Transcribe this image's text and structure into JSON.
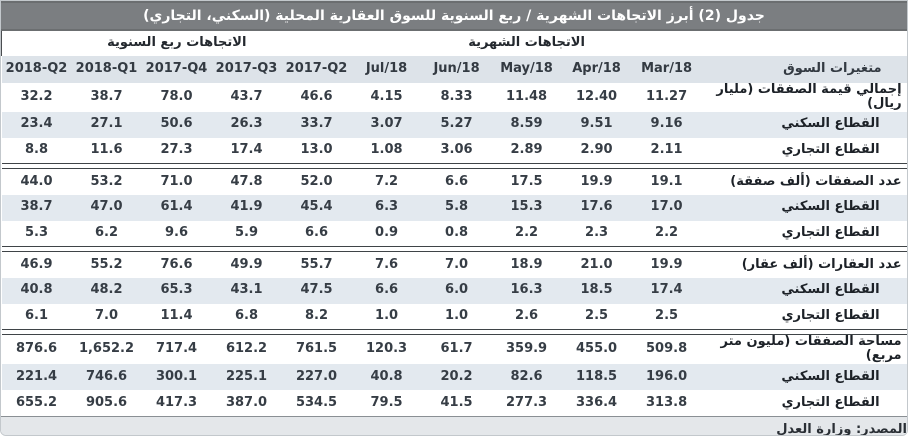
{
  "title": "جدول (2) أبرز الاتجاهات الشهرية / ربع السنوية للسوق العقارية المحلية (السكني، التجاري)",
  "groups": {
    "quarterly": "الاتجاهات ربع السنوية",
    "monthly": "الاتجاهات الشهرية"
  },
  "columns": [
    "2018-Q2",
    "2018-Q1",
    "2017-Q4",
    "2017-Q3",
    "2017-Q2",
    "Jul/18",
    "Jun/18",
    "May/18",
    "Apr/18",
    "Mar/18"
  ],
  "label_header": "متغيرات السوق",
  "sections": [
    {
      "rows": [
        {
          "label": "إجمالي قيمة الصفقات (مليار ريال)",
          "kind": "cat",
          "values": [
            "32.2",
            "38.7",
            "78.0",
            "43.7",
            "46.6",
            "4.15",
            "8.33",
            "11.48",
            "12.40",
            "11.27"
          ]
        },
        {
          "label": "القطاع السكني",
          "kind": "sub",
          "values": [
            "23.4",
            "27.1",
            "50.6",
            "26.3",
            "33.7",
            "3.07",
            "5.27",
            "8.59",
            "9.51",
            "9.16"
          ]
        },
        {
          "label": "القطاع التجاري",
          "kind": "sub",
          "values": [
            "8.8",
            "11.6",
            "27.3",
            "17.4",
            "13.0",
            "1.08",
            "3.06",
            "2.89",
            "2.90",
            "2.11"
          ]
        }
      ]
    },
    {
      "rows": [
        {
          "label": "عدد الصفقات (ألف صفقة)",
          "kind": "cat",
          "values": [
            "44.0",
            "53.2",
            "71.0",
            "47.8",
            "52.0",
            "7.2",
            "6.6",
            "17.5",
            "19.9",
            "19.1"
          ]
        },
        {
          "label": "القطاع السكني",
          "kind": "sub",
          "values": [
            "38.7",
            "47.0",
            "61.4",
            "41.9",
            "45.4",
            "6.3",
            "5.8",
            "15.3",
            "17.6",
            "17.0"
          ]
        },
        {
          "label": "القطاع التجاري",
          "kind": "sub",
          "values": [
            "5.3",
            "6.2",
            "9.6",
            "5.9",
            "6.6",
            "0.9",
            "0.8",
            "2.2",
            "2.3",
            "2.2"
          ]
        }
      ]
    },
    {
      "rows": [
        {
          "label": "عدد العقارات (ألف عقار)",
          "kind": "cat",
          "values": [
            "46.9",
            "55.2",
            "76.6",
            "49.9",
            "55.7",
            "7.6",
            "7.0",
            "18.9",
            "21.0",
            "19.9"
          ]
        },
        {
          "label": "القطاع السكني",
          "kind": "sub",
          "values": [
            "40.8",
            "48.2",
            "65.3",
            "43.1",
            "47.5",
            "6.6",
            "6.0",
            "16.3",
            "18.5",
            "17.4"
          ]
        },
        {
          "label": "القطاع التجاري",
          "kind": "sub",
          "values": [
            "6.1",
            "7.0",
            "11.4",
            "6.8",
            "8.2",
            "1.0",
            "1.0",
            "2.6",
            "2.5",
            "2.5"
          ]
        }
      ]
    },
    {
      "rows": [
        {
          "label": "مساحة الصفقات (مليون متر مربع)",
          "kind": "cat",
          "values": [
            "876.6",
            "1,652.2",
            "717.4",
            "612.2",
            "761.5",
            "120.3",
            "61.7",
            "359.9",
            "455.0",
            "509.8"
          ]
        },
        {
          "label": "القطاع السكني",
          "kind": "sub",
          "values": [
            "221.4",
            "746.6",
            "300.1",
            "225.1",
            "227.0",
            "40.8",
            "20.2",
            "82.6",
            "118.5",
            "196.0"
          ]
        },
        {
          "label": "القطاع التجاري",
          "kind": "sub",
          "values": [
            "655.2",
            "905.6",
            "417.3",
            "387.0",
            "534.5",
            "79.5",
            "41.5",
            "277.3",
            "336.4",
            "313.8"
          ]
        }
      ]
    }
  ],
  "source": "المصدر: وزارة العدل",
  "colors": {
    "title_bg": "#7b7e81",
    "title_text": "#ffffff",
    "header_bg": "#dde3e9",
    "stripe_bg": "#e3e9ef",
    "footer_bg": "#e4e7ea",
    "separator": "#3f4447"
  }
}
